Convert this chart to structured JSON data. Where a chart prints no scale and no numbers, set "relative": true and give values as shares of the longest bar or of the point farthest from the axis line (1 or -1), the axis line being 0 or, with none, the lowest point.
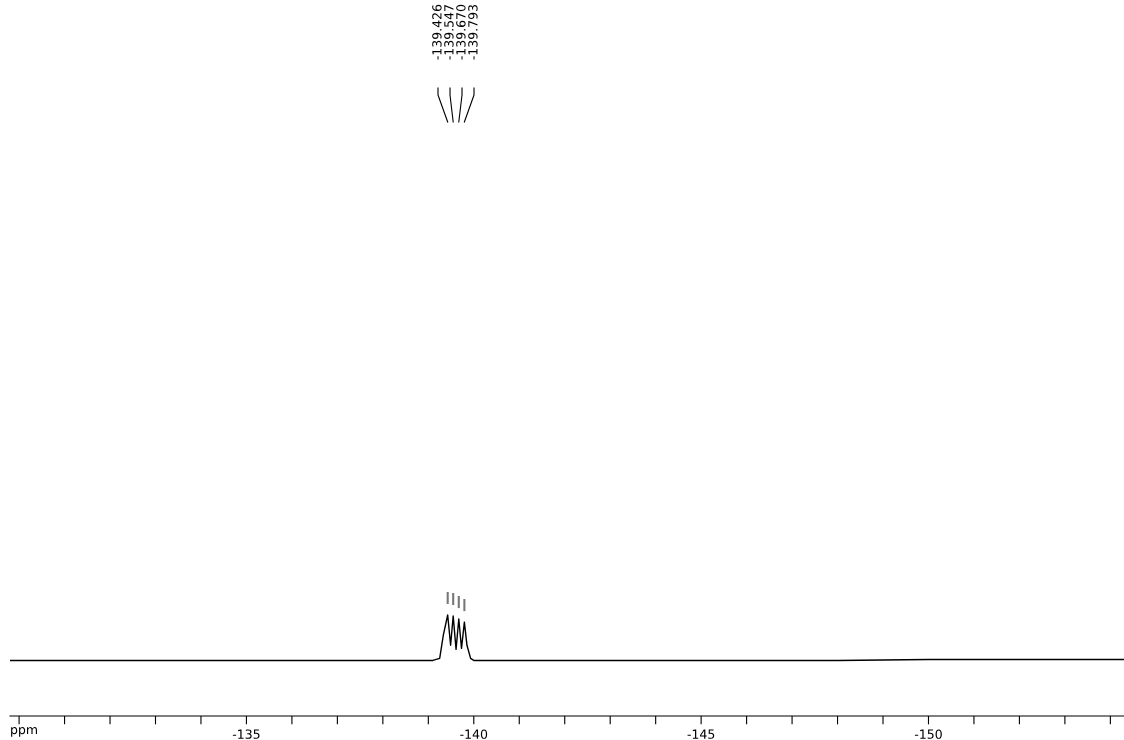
{
  "chart_data": {
    "type": "line",
    "relative": true,
    "xlabel": "ppm",
    "xlim": [
      -129.8,
      -154.3
    ],
    "xticks": [
      {
        "value": -130,
        "label": null
      },
      {
        "value": -131,
        "label": null
      },
      {
        "value": -132,
        "label": null
      },
      {
        "value": -133,
        "label": null
      },
      {
        "value": -134,
        "label": null
      },
      -135,
      {
        "value": -136,
        "label": null
      },
      {
        "value": -137,
        "label": null
      },
      {
        "value": -138,
        "label": null
      },
      {
        "value": -139,
        "label": null
      },
      -140,
      {
        "value": -141,
        "label": null
      },
      {
        "value": -142,
        "label": null
      },
      {
        "value": -143,
        "label": null
      },
      {
        "value": -144,
        "label": null
      },
      -145,
      {
        "value": -146,
        "label": null
      },
      {
        "value": -147,
        "label": null
      },
      {
        "value": -148,
        "label": null
      },
      {
        "value": -149,
        "label": null
      },
      -150,
      {
        "value": -151,
        "label": null
      },
      {
        "value": -152,
        "label": null
      },
      {
        "value": -153,
        "label": null
      },
      {
        "value": -154,
        "label": null
      }
    ],
    "marker": "none",
    "line_style": "solid",
    "series": [
      {
        "color": "#000000",
        "x": [
          -129.8,
          -132,
          -134,
          -136,
          -138,
          -139.1,
          -139.25,
          -139.33,
          -139.426,
          -139.49,
          -139.547,
          -139.61,
          -139.67,
          -139.73,
          -139.793,
          -139.85,
          -139.93,
          -140.0,
          -142,
          -144,
          -146,
          -148,
          -150,
          -152,
          -154.3
        ],
        "values": [
          0.55,
          0.55,
          0.55,
          0.55,
          0.55,
          0.55,
          0.57,
          0.8,
          1.0,
          0.7,
          0.99,
          0.66,
          0.96,
          0.67,
          0.93,
          0.7,
          0.57,
          0.55,
          0.55,
          0.55,
          0.55,
          0.55,
          0.56,
          0.56,
          0.56
        ]
      }
    ],
    "annotations": [
      "-139.426",
      "-139.547",
      "-139.670",
      "-139.793"
    ]
  }
}
